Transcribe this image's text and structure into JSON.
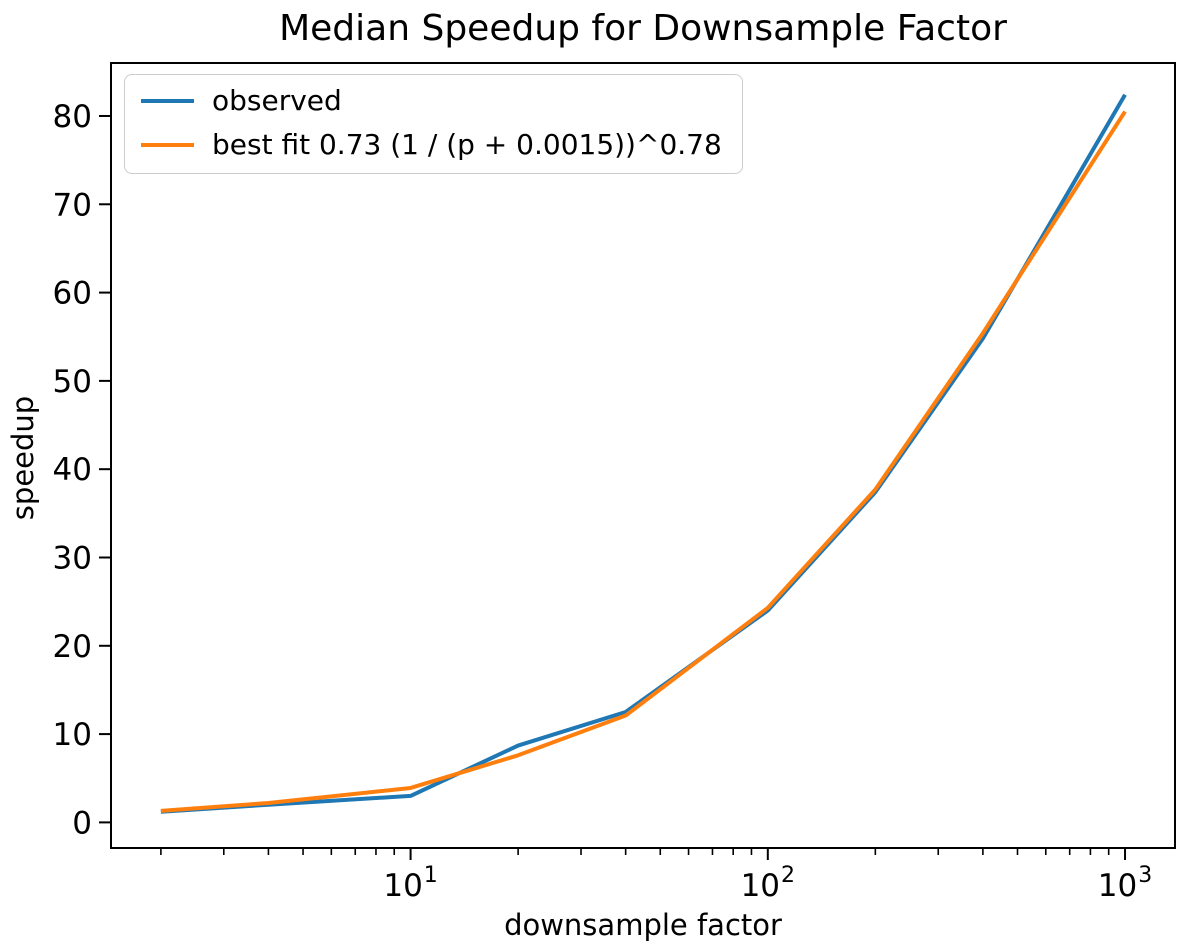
{
  "chart_data": {
    "type": "line",
    "title": "Median Speedup for Downsample Factor",
    "xlabel": "downsample factor",
    "ylabel": "speedup",
    "x_scale": "log",
    "grid": false,
    "xlim": [
      1.45,
      1380
    ],
    "ylim": [
      -2.9,
      86.0
    ],
    "x": [
      2,
      4,
      10,
      20,
      40,
      100,
      200,
      400,
      1000
    ],
    "series": [
      {
        "name": "observed",
        "color": "#1f77b4",
        "values": [
          1.2,
          2.0,
          3.0,
          8.7,
          12.5,
          24.0,
          37.4,
          54.8,
          82.4
        ]
      },
      {
        "name": "best fit 0.73 (1 / (p + 0.0015))^0.78",
        "color": "#ff7f0e",
        "values": [
          1.3,
          2.2,
          3.9,
          7.6,
          12.1,
          24.3,
          37.7,
          55.4,
          80.5
        ]
      }
    ],
    "x_ticks": [
      {
        "value": 10,
        "base": "10",
        "exponent": "1"
      },
      {
        "value": 100,
        "base": "10",
        "exponent": "2"
      },
      {
        "value": 1000,
        "base": "10",
        "exponent": "3"
      }
    ],
    "y_ticks": [
      0,
      10,
      20,
      30,
      40,
      50,
      60,
      70,
      80
    ],
    "legend_position": "upper-left",
    "axis_color": "#000000"
  }
}
